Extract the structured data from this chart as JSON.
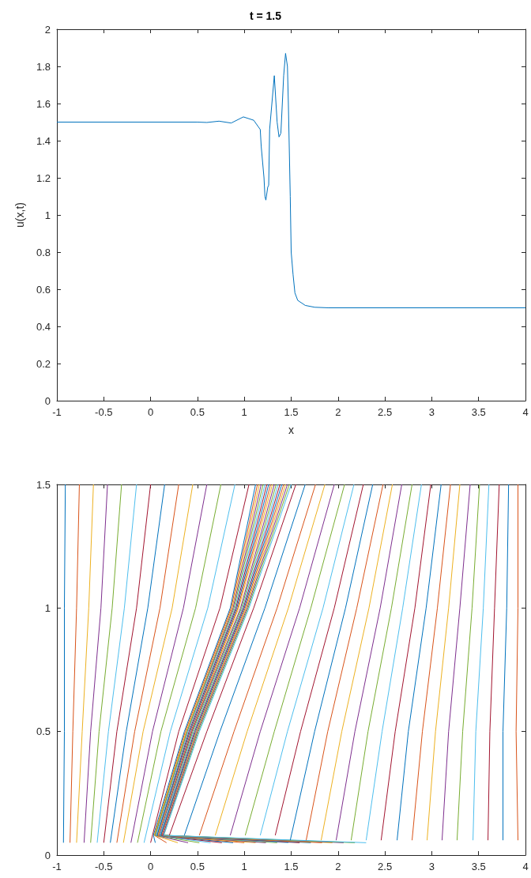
{
  "chart_data": [
    {
      "type": "line",
      "title": "t = 1.5",
      "xlabel": "x",
      "ylabel": "u(x,t)",
      "color": "#0072bd",
      "marker": "none",
      "x": [
        -1,
        0.5,
        0.6,
        0.73,
        0.86,
        0.99,
        1.1,
        1.17,
        1.18,
        1.21,
        1.22,
        1.23,
        1.25,
        1.26,
        1.27,
        1.32,
        1.35,
        1.37,
        1.39,
        1.42,
        1.44,
        1.46,
        1.47,
        1.49,
        1.5,
        1.52,
        1.54,
        1.57,
        1.65,
        1.75,
        1.9,
        4
      ],
      "values": [
        1.5,
        1.5,
        1.498,
        1.505,
        1.495,
        1.528,
        1.51,
        1.46,
        1.37,
        1.2,
        1.1,
        1.08,
        1.15,
        1.16,
        1.46,
        1.75,
        1.5,
        1.42,
        1.44,
        1.75,
        1.87,
        1.8,
        1.6,
        1.1,
        0.8,
        0.68,
        0.58,
        0.54,
        0.513,
        0.503,
        0.5,
        0.5
      ],
      "xlim": [
        -1,
        4
      ],
      "xticks": [
        -1,
        -0.5,
        0,
        0.5,
        1,
        1.5,
        2,
        2.5,
        3,
        3.5,
        4
      ],
      "ylim": [
        0,
        2
      ],
      "yticks": [
        0,
        0.2,
        0.4,
        0.6,
        0.8,
        1,
        1.2,
        1.4,
        1.6,
        1.8,
        2
      ]
    },
    {
      "type": "line",
      "marker": "none",
      "xlim": [
        -1,
        4
      ],
      "xticks": [
        -1,
        -0.5,
        0,
        0.5,
        1,
        1.5,
        2,
        2.5,
        3,
        3.5,
        4
      ],
      "ylim": [
        0,
        1.5
      ],
      "yticks": [
        0,
        0.5,
        1,
        1.5
      ],
      "series": [
        {
          "color": "#0072bd",
          "x": [
            -0.93,
            -0.92,
            -0.92,
            -0.91
          ],
          "values": [
            0.05,
            0.5,
            1.0,
            1.5
          ]
        },
        {
          "color": "#d95319",
          "x": [
            -0.86,
            -0.83,
            -0.79,
            -0.76
          ],
          "values": [
            0.05,
            0.5,
            1.0,
            1.5
          ]
        },
        {
          "color": "#edb120",
          "x": [
            -0.79,
            -0.73,
            -0.66,
            -0.61
          ],
          "values": [
            0.05,
            0.5,
            1.0,
            1.5
          ]
        },
        {
          "color": "#7e2f8e",
          "x": [
            -0.71,
            -0.64,
            -0.53,
            -0.46
          ],
          "values": [
            0.05,
            0.5,
            1.0,
            1.5
          ]
        },
        {
          "color": "#77ac30",
          "x": [
            -0.64,
            -0.55,
            -0.41,
            -0.31
          ],
          "values": [
            0.05,
            0.5,
            1.0,
            1.5
          ]
        },
        {
          "color": "#4dbeee",
          "x": [
            -0.57,
            -0.45,
            -0.28,
            -0.15
          ],
          "values": [
            0.05,
            0.5,
            1.0,
            1.5
          ]
        },
        {
          "color": "#a2142f",
          "x": [
            -0.5,
            -0.36,
            -0.15,
            0.0
          ],
          "values": [
            0.05,
            0.5,
            1.0,
            1.5
          ]
        },
        {
          "color": "#0072bd",
          "x": [
            -0.43,
            -0.26,
            -0.03,
            0.15
          ],
          "values": [
            0.05,
            0.5,
            1.0,
            1.5
          ]
        },
        {
          "color": "#d95319",
          "x": [
            -0.36,
            -0.17,
            0.1,
            0.3
          ],
          "values": [
            0.05,
            0.5,
            1.0,
            1.5
          ]
        },
        {
          "color": "#edb120",
          "x": [
            -0.29,
            -0.08,
            0.23,
            0.45
          ],
          "values": [
            0.05,
            0.5,
            1.0,
            1.5
          ]
        },
        {
          "color": "#7e2f8e",
          "x": [
            -0.21,
            0.02,
            0.35,
            0.6
          ],
          "values": [
            0.05,
            0.5,
            1.0,
            1.5
          ]
        },
        {
          "color": "#77ac30",
          "x": [
            -0.14,
            0.11,
            0.48,
            0.75
          ],
          "values": [
            0.05,
            0.5,
            1.0,
            1.5
          ]
        },
        {
          "color": "#4dbeee",
          "x": [
            -0.07,
            0.21,
            0.61,
            0.9
          ],
          "values": [
            0.05,
            0.5,
            1.0,
            1.5
          ]
        },
        {
          "color": "#a2142f",
          "x": [
            0.0,
            0.3,
            0.74,
            1.05
          ],
          "values": [
            0.05,
            0.5,
            1.0,
            1.5
          ]
        },
        {
          "color": "#0072bd",
          "x": [
            0.05,
            0.03,
            0.36,
            0.85,
            1.12
          ],
          "values": [
            0.05,
            0.08,
            0.5,
            1.0,
            1.5
          ]
        },
        {
          "color": "#d95319",
          "x": [
            0.17,
            0.04,
            0.37,
            0.86,
            1.14
          ],
          "values": [
            0.05,
            0.08,
            0.5,
            1.0,
            1.5
          ]
        },
        {
          "color": "#edb120",
          "x": [
            0.29,
            0.04,
            0.38,
            0.87,
            1.16
          ],
          "values": [
            0.05,
            0.08,
            0.5,
            1.0,
            1.5
          ]
        },
        {
          "color": "#7e2f8e",
          "x": [
            0.4,
            0.05,
            0.39,
            0.88,
            1.18
          ],
          "values": [
            0.05,
            0.08,
            0.5,
            1.0,
            1.5
          ]
        },
        {
          "color": "#77ac30",
          "x": [
            0.52,
            0.05,
            0.39,
            0.89,
            1.2
          ],
          "values": [
            0.05,
            0.08,
            0.5,
            1.0,
            1.5
          ]
        },
        {
          "color": "#4dbeee",
          "x": [
            0.64,
            0.06,
            0.4,
            0.9,
            1.22
          ],
          "values": [
            0.05,
            0.08,
            0.5,
            1.0,
            1.5
          ]
        },
        {
          "color": "#a2142f",
          "x": [
            0.76,
            0.07,
            0.41,
            0.91,
            1.24
          ],
          "values": [
            0.05,
            0.08,
            0.5,
            1.0,
            1.5
          ]
        },
        {
          "color": "#0072bd",
          "x": [
            0.88,
            0.07,
            0.42,
            0.92,
            1.26
          ],
          "values": [
            0.05,
            0.08,
            0.5,
            1.0,
            1.5
          ]
        },
        {
          "color": "#d95319",
          "x": [
            1.0,
            0.08,
            0.43,
            0.93,
            1.28
          ],
          "values": [
            0.05,
            0.08,
            0.5,
            1.0,
            1.5
          ]
        },
        {
          "color": "#edb120",
          "x": [
            1.12,
            0.08,
            0.44,
            0.94,
            1.3
          ],
          "values": [
            0.05,
            0.08,
            0.5,
            1.0,
            1.5
          ]
        },
        {
          "color": "#7e2f8e",
          "x": [
            1.23,
            0.09,
            0.44,
            0.96,
            1.32
          ],
          "values": [
            0.05,
            0.08,
            0.5,
            1.0,
            1.5
          ]
        },
        {
          "color": "#77ac30",
          "x": [
            1.35,
            0.1,
            0.45,
            0.97,
            1.34
          ],
          "values": [
            0.05,
            0.08,
            0.5,
            1.0,
            1.5
          ]
        },
        {
          "color": "#4dbeee",
          "x": [
            1.47,
            0.1,
            0.46,
            0.98,
            1.36
          ],
          "values": [
            0.05,
            0.08,
            0.5,
            1.0,
            1.5
          ]
        },
        {
          "color": "#a2142f",
          "x": [
            1.59,
            0.11,
            0.47,
            0.99,
            1.38
          ],
          "values": [
            0.05,
            0.08,
            0.5,
            1.0,
            1.5
          ]
        },
        {
          "color": "#0072bd",
          "x": [
            1.71,
            0.11,
            0.48,
            1.0,
            1.4
          ],
          "values": [
            0.05,
            0.08,
            0.5,
            1.0,
            1.5
          ]
        },
        {
          "color": "#d95319",
          "x": [
            1.83,
            0.12,
            0.49,
            1.01,
            1.42
          ],
          "values": [
            0.05,
            0.08,
            0.5,
            1.0,
            1.5
          ]
        },
        {
          "color": "#edb120",
          "x": [
            1.94,
            0.13,
            0.49,
            1.02,
            1.44
          ],
          "values": [
            0.05,
            0.08,
            0.5,
            1.0,
            1.5
          ]
        },
        {
          "color": "#7e2f8e",
          "x": [
            2.06,
            0.13,
            0.5,
            1.03,
            1.46
          ],
          "values": [
            0.05,
            0.08,
            0.5,
            1.0,
            1.5
          ]
        },
        {
          "color": "#77ac30",
          "x": [
            2.18,
            0.14,
            0.51,
            1.04,
            1.48
          ],
          "values": [
            0.05,
            0.08,
            0.5,
            1.0,
            1.5
          ]
        },
        {
          "color": "#4dbeee",
          "x": [
            2.3,
            0.14,
            0.52,
            1.05,
            1.5
          ],
          "values": [
            0.05,
            0.08,
            0.5,
            1.0,
            1.5
          ]
        },
        {
          "color": "#a2142f",
          "x": [
            0.2,
            0.6,
            1.1,
            1.55
          ],
          "values": [
            0.08,
            0.5,
            1.0,
            1.5
          ]
        },
        {
          "color": "#0072bd",
          "x": [
            0.36,
            0.74,
            1.22,
            1.65
          ],
          "values": [
            0.08,
            0.5,
            1.0,
            1.5
          ]
        },
        {
          "color": "#d95319",
          "x": [
            0.52,
            0.89,
            1.35,
            1.76
          ],
          "values": [
            0.08,
            0.5,
            1.0,
            1.5
          ]
        },
        {
          "color": "#edb120",
          "x": [
            0.69,
            1.03,
            1.47,
            1.86
          ],
          "values": [
            0.08,
            0.5,
            1.0,
            1.5
          ]
        },
        {
          "color": "#7e2f8e",
          "x": [
            0.85,
            1.17,
            1.59,
            1.96
          ],
          "values": [
            0.08,
            0.5,
            1.0,
            1.5
          ]
        },
        {
          "color": "#77ac30",
          "x": [
            1.01,
            1.32,
            1.71,
            2.07
          ],
          "values": [
            0.08,
            0.5,
            1.0,
            1.5
          ]
        },
        {
          "color": "#4dbeee",
          "x": [
            1.17,
            1.46,
            1.84,
            2.17
          ],
          "values": [
            0.08,
            0.5,
            1.0,
            1.5
          ]
        },
        {
          "color": "#a2142f",
          "x": [
            1.33,
            1.6,
            1.96,
            2.27
          ],
          "values": [
            0.08,
            0.5,
            1.0,
            1.5
          ]
        },
        {
          "color": "#0072bd",
          "x": [
            1.49,
            1.75,
            2.08,
            2.37
          ],
          "values": [
            0.06,
            0.5,
            1.0,
            1.5
          ]
        },
        {
          "color": "#d95319",
          "x": [
            1.66,
            1.89,
            2.2,
            2.48
          ],
          "values": [
            0.06,
            0.5,
            1.0,
            1.5
          ]
        },
        {
          "color": "#edb120",
          "x": [
            1.82,
            2.04,
            2.33,
            2.58
          ],
          "values": [
            0.06,
            0.5,
            1.0,
            1.5
          ]
        },
        {
          "color": "#7e2f8e",
          "x": [
            1.98,
            2.18,
            2.45,
            2.68
          ],
          "values": [
            0.06,
            0.5,
            1.0,
            1.5
          ]
        },
        {
          "color": "#77ac30",
          "x": [
            2.14,
            2.32,
            2.57,
            2.79
          ],
          "values": [
            0.06,
            0.5,
            1.0,
            1.5
          ]
        },
        {
          "color": "#4dbeee",
          "x": [
            2.3,
            2.47,
            2.69,
            2.89
          ],
          "values": [
            0.06,
            0.5,
            1.0,
            1.5
          ]
        },
        {
          "color": "#a2142f",
          "x": [
            2.46,
            2.61,
            2.82,
            2.99
          ],
          "values": [
            0.06,
            0.5,
            1.0,
            1.5
          ]
        },
        {
          "color": "#0072bd",
          "x": [
            2.63,
            2.75,
            2.94,
            3.1
          ],
          "values": [
            0.06,
            0.5,
            1.0,
            1.5
          ]
        },
        {
          "color": "#d95319",
          "x": [
            2.79,
            2.9,
            3.06,
            3.2
          ],
          "values": [
            0.06,
            0.5,
            1.0,
            1.5
          ]
        },
        {
          "color": "#edb120",
          "x": [
            2.95,
            3.04,
            3.18,
            3.3
          ],
          "values": [
            0.06,
            0.5,
            1.0,
            1.5
          ]
        },
        {
          "color": "#7e2f8e",
          "x": [
            3.11,
            3.18,
            3.3,
            3.41
          ],
          "values": [
            0.06,
            0.5,
            1.0,
            1.5
          ]
        },
        {
          "color": "#77ac30",
          "x": [
            3.27,
            3.33,
            3.43,
            3.51
          ],
          "values": [
            0.06,
            0.5,
            1.0,
            1.5
          ]
        },
        {
          "color": "#4dbeee",
          "x": [
            3.44,
            3.47,
            3.55,
            3.61
          ],
          "values": [
            0.06,
            0.5,
            1.0,
            1.5
          ]
        },
        {
          "color": "#a2142f",
          "x": [
            3.6,
            3.62,
            3.67,
            3.72
          ],
          "values": [
            0.06,
            0.5,
            1.0,
            1.5
          ]
        },
        {
          "color": "#0072bd",
          "x": [
            3.76,
            3.76,
            3.8,
            3.82
          ],
          "values": [
            0.06,
            0.5,
            1.0,
            1.5
          ]
        },
        {
          "color": "#d95319",
          "x": [
            3.92,
            3.9,
            3.92,
            3.92
          ],
          "values": [
            0.06,
            0.5,
            1.0,
            1.5
          ]
        }
      ]
    }
  ]
}
